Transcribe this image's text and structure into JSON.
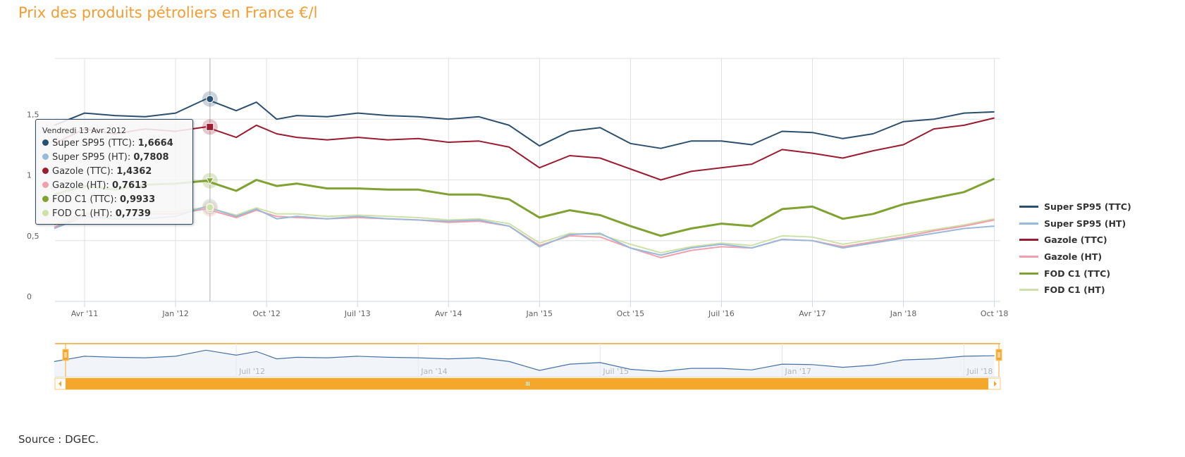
{
  "title": "Prix des produits pétroliers en France €/l",
  "source": "Source : DGEC.",
  "tooltip": {
    "date": "Vendredi 13 Avr 2012",
    "rows": [
      {
        "label": "Super SP95 (TTC): ",
        "value": "1,6664"
      },
      {
        "label": "Super SP95 (HT): ",
        "value": "0,7808"
      },
      {
        "label": "Gazole (TTC): ",
        "value": "1,4362"
      },
      {
        "label": "Gazole (HT): ",
        "value": "0,7613"
      },
      {
        "label": "FOD C1 (TTC): ",
        "value": "0,9933"
      },
      {
        "label": "FOD C1 (HT): ",
        "value": "0,7739"
      }
    ]
  },
  "chart_data": {
    "type": "line",
    "title": "Prix des produits pétroliers en France €/l",
    "xlabel": "",
    "ylabel": "",
    "ylim": [
      0,
      2
    ],
    "yticks": [
      "0",
      "0,5",
      "1",
      "1,5"
    ],
    "xticks": [
      "Avr '11",
      "Jan '12",
      "Oct '12",
      "Juil '13",
      "Avr '14",
      "Jan '15",
      "Oct '15",
      "Juil '16",
      "Avr '17",
      "Jan '18",
      "Oct '18"
    ],
    "navigator_ticks": [
      "Juil '12",
      "Jan '14",
      "Juil '15",
      "Jan '17",
      "Juil '18"
    ],
    "grid": true,
    "legend_position": "right",
    "crosshair_date": "2012-04-13",
    "x": [
      "2011-01",
      "2011-04",
      "2011-07",
      "2011-10",
      "2012-01",
      "2012-04",
      "2012-07",
      "2012-09",
      "2012-11",
      "2013-01",
      "2013-04",
      "2013-07",
      "2013-10",
      "2014-01",
      "2014-04",
      "2014-07",
      "2014-10",
      "2015-01",
      "2015-04",
      "2015-07",
      "2015-10",
      "2016-01",
      "2016-04",
      "2016-07",
      "2016-10",
      "2017-01",
      "2017-04",
      "2017-07",
      "2017-10",
      "2018-01",
      "2018-04",
      "2018-07",
      "2018-10"
    ],
    "series": [
      {
        "name": "Super SP95 (TTC)",
        "color": "#2b4f6e",
        "width": 2,
        "values": [
          1.45,
          1.55,
          1.53,
          1.52,
          1.55,
          1.666,
          1.57,
          1.64,
          1.5,
          1.53,
          1.52,
          1.55,
          1.53,
          1.52,
          1.5,
          1.52,
          1.45,
          1.28,
          1.4,
          1.43,
          1.3,
          1.26,
          1.32,
          1.32,
          1.29,
          1.4,
          1.39,
          1.34,
          1.38,
          1.48,
          1.5,
          1.55,
          1.56
        ]
      },
      {
        "name": "Super SP95 (HT)",
        "color": "#98b9d8",
        "width": 2,
        "values": [
          0.6,
          0.7,
          0.68,
          0.68,
          0.7,
          0.781,
          0.7,
          0.76,
          0.68,
          0.7,
          0.68,
          0.7,
          0.68,
          0.67,
          0.66,
          0.67,
          0.62,
          0.45,
          0.55,
          0.56,
          0.44,
          0.38,
          0.44,
          0.47,
          0.44,
          0.51,
          0.5,
          0.44,
          0.48,
          0.52,
          0.56,
          0.6,
          0.62
        ]
      },
      {
        "name": "Gazole (TTC)",
        "color": "#9b1b30",
        "width": 2,
        "values": [
          1.3,
          1.42,
          1.38,
          1.42,
          1.4,
          1.436,
          1.35,
          1.45,
          1.38,
          1.35,
          1.33,
          1.35,
          1.33,
          1.34,
          1.31,
          1.32,
          1.27,
          1.1,
          1.2,
          1.18,
          1.09,
          1.0,
          1.07,
          1.1,
          1.13,
          1.25,
          1.22,
          1.18,
          1.24,
          1.29,
          1.42,
          1.45,
          1.51
        ]
      },
      {
        "name": "Gazole (HT)",
        "color": "#f0a0ad",
        "width": 2,
        "values": [
          0.61,
          0.72,
          0.7,
          0.72,
          0.72,
          0.761,
          0.69,
          0.75,
          0.7,
          0.69,
          0.68,
          0.69,
          0.68,
          0.67,
          0.65,
          0.66,
          0.62,
          0.46,
          0.54,
          0.53,
          0.44,
          0.36,
          0.42,
          0.45,
          0.44,
          0.51,
          0.5,
          0.45,
          0.49,
          0.53,
          0.58,
          0.62,
          0.67
        ]
      },
      {
        "name": "FOD C1 (TTC)",
        "color": "#7fa232",
        "width": 3,
        "values": [
          0.88,
          0.95,
          0.92,
          0.96,
          0.97,
          0.993,
          0.91,
          1.0,
          0.95,
          0.97,
          0.93,
          0.93,
          0.92,
          0.92,
          0.88,
          0.88,
          0.84,
          0.69,
          0.75,
          0.71,
          0.62,
          0.54,
          0.6,
          0.64,
          0.62,
          0.76,
          0.78,
          0.68,
          0.72,
          0.8,
          0.85,
          0.9,
          1.01
        ]
      },
      {
        "name": "FOD C1 (HT)",
        "color": "#cfe0a8",
        "width": 2,
        "values": [
          0.63,
          0.73,
          0.71,
          0.74,
          0.74,
          0.774,
          0.71,
          0.77,
          0.72,
          0.72,
          0.7,
          0.71,
          0.7,
          0.69,
          0.67,
          0.68,
          0.64,
          0.48,
          0.56,
          0.55,
          0.47,
          0.4,
          0.45,
          0.48,
          0.46,
          0.54,
          0.53,
          0.47,
          0.51,
          0.55,
          0.59,
          0.63,
          0.68
        ]
      }
    ]
  },
  "accent_color": "#f39c32",
  "navigator": {
    "series": "Super SP95 (TTC)",
    "handle_color": "#f4a72b",
    "scrollbar_color": "#f4a72b"
  }
}
